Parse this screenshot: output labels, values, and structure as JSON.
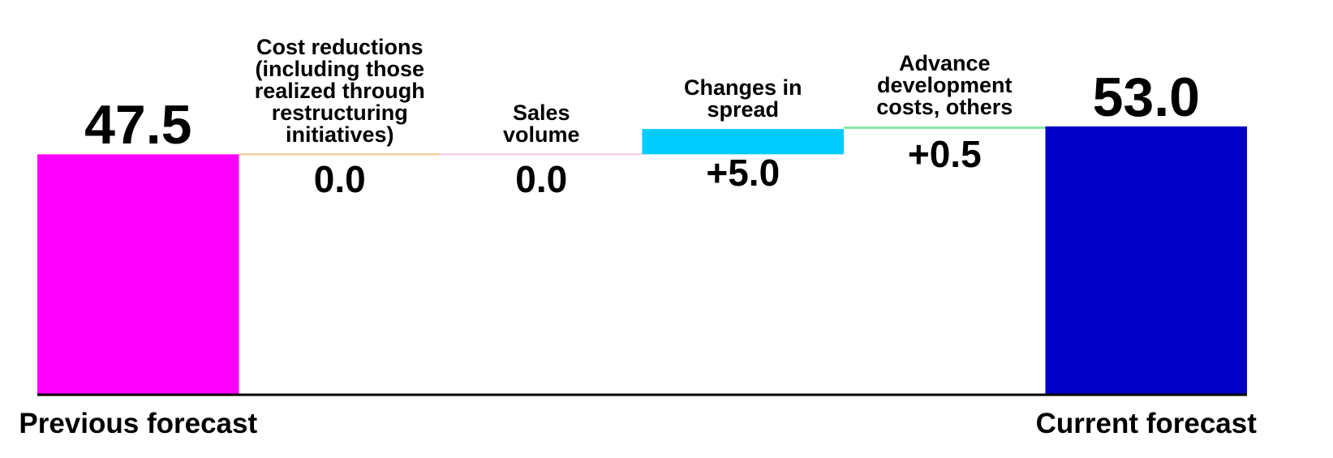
{
  "chart_data": {
    "type": "waterfall",
    "categories": [
      "Previous forecast",
      "Cost reductions\n(including those\nrealized through\nrestructuring\ninitiatives)",
      "Sales\nvolume",
      "Changes in\nspread",
      "Advance\ndevelopment\ncosts, others",
      "Current forecast"
    ],
    "values": [
      47.5,
      0,
      0,
      5,
      0.5,
      53
    ],
    "value_labels": [
      "47.5",
      "0.0",
      "0.0",
      "+5.0",
      "+0.5",
      "53.0"
    ],
    "colors": [
      "#ff00ff",
      "#f5c48a",
      "#f0c8f0",
      "#00ccff",
      "#88e8a8",
      "#0000c8"
    ]
  }
}
